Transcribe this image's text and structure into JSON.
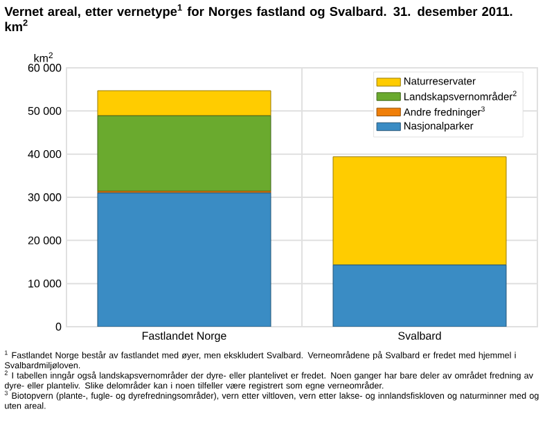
{
  "chart_data": {
    "type": "bar",
    "stacked": true,
    "title": "**Vernet areal, etter vernetype$^{1}$ for Norges fastland og Svalbard. 31. desember 2011. km$^{2}$**",
    "ylabel": "km$^{2}$",
    "categories": [
      "Fastlandet Norge",
      "Svalbard"
    ],
    "series": [
      {
        "name": "Nasjonalparker",
        "color": "#3a8cc4",
        "values": [
          31000,
          14300
        ]
      },
      {
        "name": "Andre fredninger$^{3}$",
        "color": "#f07f09",
        "values": [
          400,
          0
        ]
      },
      {
        "name": "Landskapsvernområder$^{2}$",
        "color": "#6aaa2e",
        "values": [
          17500,
          0
        ]
      },
      {
        "name": "Naturreservater",
        "color": "#ffcc00",
        "values": [
          5800,
          25100
        ]
      }
    ],
    "ylim": [
      0,
      60000
    ],
    "yticks": [
      0,
      {
        "value": 10000,
        "label": "10 000"
      },
      {
        "value": 20000,
        "label": "20 000"
      },
      {
        "value": 30000,
        "label": "30 000"
      },
      {
        "value": 40000,
        "label": "40 000"
      },
      {
        "value": 50000,
        "label": "50 000"
      },
      {
        "value": 60000,
        "label": "60 000"
      }
    ],
    "grid": true,
    "legend": "top right",
    "annotations": [
      "$^{1}$ Fastlandet Norge består av fastlandet med øyer, men ekskludert Svalbard. Verneområdene på Svalbard er fredet med hjemmel i Svalbardmiljøloven.",
      "$^{2}$ I tabellen inngår også landskapsvernområder der dyre- eller plantelivet er fredet. Noen ganger har bare deler av området fredning av dyre- eller planteliv. Slike delområder kan i noen tilfeller være registrert som egne verneområder.",
      "$^{3}$ Biotopvern (plante-, fugle- og dyrefredningsområder), vern etter viltloven, vern etter lakse- og innlandsfiskloven og naturminner med og uten areal."
    ]
  }
}
